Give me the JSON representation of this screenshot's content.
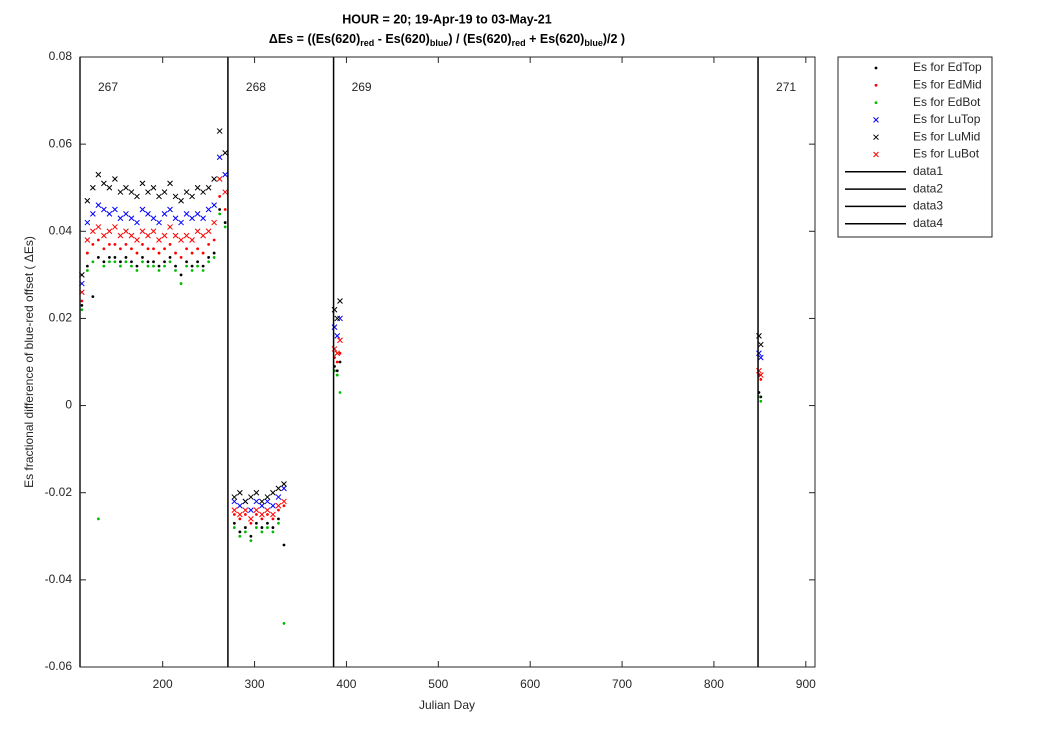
{
  "chart_data": {
    "type": "scatter",
    "title": "HOUR = 20; 19-Apr-19 to 03-May-21",
    "subtitle_parts": [
      {
        "text": "ΔEs = ((Es(620)",
        "sub": false
      },
      {
        "text": "red",
        "sub": true
      },
      {
        "text": " - Es(620)",
        "sub": false
      },
      {
        "text": "blue",
        "sub": true
      },
      {
        "text": ") / (Es(620)",
        "sub": false
      },
      {
        "text": "red",
        "sub": true
      },
      {
        "text": " + Es(620)",
        "sub": false
      },
      {
        "text": "blue",
        "sub": true
      },
      {
        "text": ")/2  )",
        "sub": false
      }
    ],
    "xlabel": "Julian Day",
    "ylabel": "Es fractional difference of blue-red offset (  ΔEs)",
    "xlim": [
      110,
      910
    ],
    "ylim": [
      -0.06,
      0.08
    ],
    "xticks": [
      200,
      300,
      400,
      500,
      600,
      700,
      800,
      900
    ],
    "yticks": [
      -0.06,
      -0.04,
      -0.02,
      0,
      0.02,
      0.04,
      0.06,
      0.08
    ],
    "grid": false,
    "legend": "outside-top-right",
    "x": [
      112,
      118,
      124,
      130,
      136,
      142,
      148,
      154,
      160,
      166,
      172,
      178,
      184,
      190,
      196,
      202,
      208,
      214,
      220,
      226,
      232,
      238,
      244,
      250,
      256,
      262,
      268,
      278,
      284,
      290,
      296,
      302,
      308,
      314,
      320,
      326,
      332,
      387,
      390,
      393,
      849,
      851
    ],
    "series": [
      {
        "name": "Es for EdTop",
        "color": "#000000",
        "marker": "dot",
        "values": [
          0.023,
          0.032,
          0.025,
          0.034,
          0.033,
          0.034,
          0.034,
          0.033,
          0.034,
          0.033,
          0.032,
          0.034,
          0.033,
          0.033,
          0.032,
          0.033,
          0.034,
          0.032,
          0.03,
          0.033,
          0.032,
          0.033,
          0.032,
          0.034,
          0.035,
          0.045,
          0.042,
          -0.027,
          -0.029,
          -0.028,
          -0.03,
          -0.027,
          -0.028,
          -0.027,
          -0.028,
          -0.026,
          -0.032,
          0.009,
          0.008,
          0.01,
          0.003,
          0.002
        ]
      },
      {
        "name": "Es for EdMid",
        "color": "#ff0000",
        "marker": "dot",
        "values": [
          0.024,
          0.035,
          0.037,
          0.038,
          0.036,
          0.037,
          0.037,
          0.036,
          0.037,
          0.036,
          0.035,
          0.037,
          0.036,
          0.036,
          0.035,
          0.036,
          0.037,
          0.035,
          0.034,
          0.036,
          0.035,
          0.036,
          0.035,
          0.037,
          0.038,
          0.048,
          0.045,
          -0.025,
          -0.026,
          -0.025,
          -0.027,
          -0.025,
          -0.026,
          -0.025,
          -0.026,
          -0.024,
          -0.023,
          0.011,
          0.01,
          0.012,
          0.007,
          0.006
        ]
      },
      {
        "name": "Es for EdBot",
        "color": "#00bb00",
        "marker": "dot",
        "values": [
          0.022,
          0.031,
          0.033,
          -0.026,
          0.032,
          0.033,
          0.033,
          0.032,
          0.033,
          0.032,
          0.031,
          0.033,
          0.032,
          0.032,
          0.031,
          0.032,
          0.033,
          0.031,
          0.028,
          0.032,
          0.031,
          0.032,
          0.031,
          0.033,
          0.034,
          0.044,
          0.041,
          -0.028,
          -0.03,
          -0.029,
          -0.031,
          -0.028,
          -0.029,
          -0.028,
          -0.029,
          -0.027,
          -0.05,
          0.008,
          0.007,
          0.003,
          0.002,
          0.001
        ]
      },
      {
        "name": "Es for LuTop",
        "color": "#0000ff",
        "marker": "x",
        "values": [
          0.028,
          0.042,
          0.044,
          0.046,
          0.045,
          0.044,
          0.045,
          0.043,
          0.044,
          0.043,
          0.042,
          0.045,
          0.044,
          0.043,
          0.042,
          0.044,
          0.045,
          0.043,
          0.042,
          0.044,
          0.043,
          0.044,
          0.043,
          0.045,
          0.046,
          0.057,
          0.053,
          -0.022,
          -0.023,
          -0.022,
          -0.024,
          -0.022,
          -0.023,
          -0.022,
          -0.023,
          -0.021,
          -0.019,
          0.018,
          0.016,
          0.02,
          0.012,
          0.011
        ]
      },
      {
        "name": "Es for LuMid",
        "color": "#000000",
        "marker": "x",
        "values": [
          0.03,
          0.047,
          0.05,
          0.053,
          0.051,
          0.05,
          0.052,
          0.049,
          0.05,
          0.049,
          0.048,
          0.051,
          0.049,
          0.05,
          0.048,
          0.049,
          0.051,
          0.048,
          0.047,
          0.049,
          0.048,
          0.05,
          0.049,
          0.05,
          0.052,
          0.063,
          0.058,
          -0.021,
          -0.02,
          -0.022,
          -0.021,
          -0.02,
          -0.022,
          -0.021,
          -0.02,
          -0.019,
          -0.018,
          0.022,
          0.02,
          0.024,
          0.016,
          0.014
        ]
      },
      {
        "name": "Es for LuBot",
        "color": "#ff0000",
        "marker": "x",
        "values": [
          0.026,
          0.038,
          0.04,
          0.041,
          0.039,
          0.04,
          0.041,
          0.039,
          0.04,
          0.039,
          0.038,
          0.04,
          0.039,
          0.04,
          0.038,
          0.039,
          0.041,
          0.039,
          0.038,
          0.039,
          0.038,
          0.04,
          0.039,
          0.04,
          0.042,
          0.052,
          0.049,
          -0.024,
          -0.025,
          -0.024,
          -0.026,
          -0.024,
          -0.025,
          -0.024,
          -0.025,
          -0.023,
          -0.022,
          0.013,
          0.012,
          0.015,
          0.008,
          0.007
        ]
      }
    ],
    "vlines": [
      {
        "name": "data1",
        "color": "#000000",
        "x": 110
      },
      {
        "name": "data2",
        "color": "#000000",
        "x": 271
      },
      {
        "name": "data3",
        "color": "#000000",
        "x": 386
      },
      {
        "name": "data4",
        "color": "#000000",
        "x": 848
      }
    ],
    "annotations": [
      "267",
      "268",
      "269",
      "271"
    ]
  }
}
